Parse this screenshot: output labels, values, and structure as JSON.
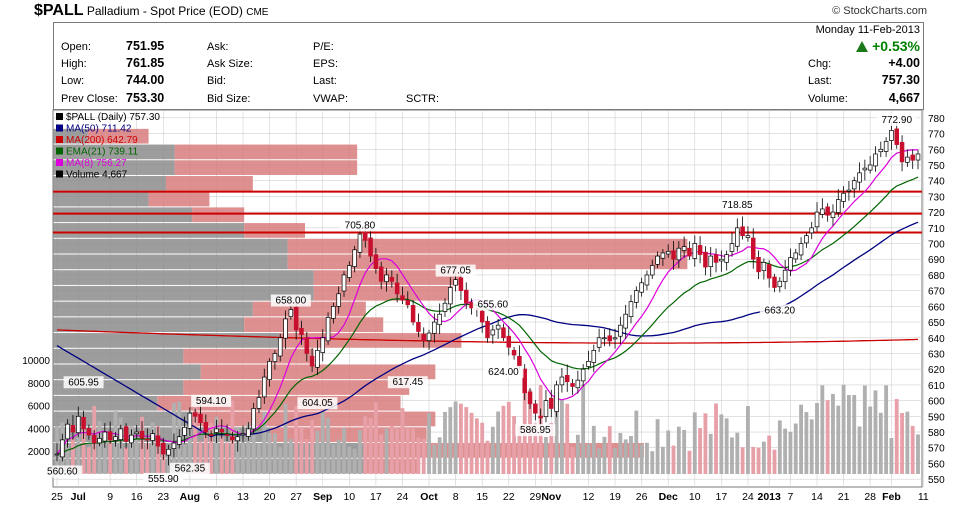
{
  "header": {
    "symbol": "$PALL",
    "name": "Palladium - Spot Price (EOD)",
    "exchange": "CME",
    "brand": "© StockCharts.com"
  },
  "quote": {
    "open_label": "Open:",
    "open": "751.95",
    "high_label": "High:",
    "high": "761.85",
    "low_label": "Low:",
    "low": "744.00",
    "prev_label": "Prev Close:",
    "prev": "753.30",
    "ask_label": "Ask:",
    "asksize_label": "Ask Size:",
    "bid_label": "Bid:",
    "bidsize_label": "Bid Size:",
    "pe_label": "P/E:",
    "eps_label": "EPS:",
    "last_label2": "Last:",
    "vwap_label": "VWAP:",
    "sctr_label": "SCTR:",
    "date": "Monday  11-Feb-2013",
    "pct": "+0.53%",
    "chg_label": "Chg:",
    "chg": "+4.00",
    "last_label": "Last:",
    "last": "757.30",
    "volume_label": "Volume:",
    "volume": "4,667"
  },
  "legend": [
    {
      "text": "$PALL (Daily) 757.30",
      "color": "#000000"
    },
    {
      "text": "MA(50) 711.42",
      "color": "#000080"
    },
    {
      "text": "MA(200) 642.79",
      "color": "#cc0000"
    },
    {
      "text": "EMA(21) 739.11",
      "color": "#006400"
    },
    {
      "text": "MA(8) 756.27",
      "color": "#dd00dd"
    },
    {
      "text": "Volume 4,667",
      "color": "#000000"
    }
  ],
  "chart_data": {
    "type": "candlestick",
    "title": "$PALL (Daily) 757.30",
    "ylim": [
      545,
      785
    ],
    "y_ticks": [
      550,
      560,
      570,
      580,
      590,
      600,
      610,
      620,
      630,
      640,
      650,
      660,
      670,
      680,
      690,
      700,
      710,
      720,
      730,
      740,
      750,
      760,
      770,
      780
    ],
    "vol_ticks": [
      2000,
      4000,
      6000,
      8000,
      10000
    ],
    "x_labels": [
      {
        "text": "25",
        "i": 0
      },
      {
        "text": "Jul",
        "i": 4
      },
      {
        "text": "9",
        "i": 10
      },
      {
        "text": "16",
        "i": 15
      },
      {
        "text": "23",
        "i": 20
      },
      {
        "text": "Aug",
        "i": 25
      },
      {
        "text": "6",
        "i": 30
      },
      {
        "text": "13",
        "i": 35
      },
      {
        "text": "20",
        "i": 40
      },
      {
        "text": "27",
        "i": 45
      },
      {
        "text": "Sep",
        "i": 50
      },
      {
        "text": "10",
        "i": 55
      },
      {
        "text": "17",
        "i": 60
      },
      {
        "text": "24",
        "i": 65
      },
      {
        "text": "Oct",
        "i": 70
      },
      {
        "text": "8",
        "i": 75
      },
      {
        "text": "15",
        "i": 80
      },
      {
        "text": "22",
        "i": 85
      },
      {
        "text": "29",
        "i": 90
      },
      {
        "text": "Nov",
        "i": 93
      },
      {
        "text": "12",
        "i": 100
      },
      {
        "text": "19",
        "i": 105
      },
      {
        "text": "26",
        "i": 110
      },
      {
        "text": "Dec",
        "i": 115
      },
      {
        "text": "10",
        "i": 120
      },
      {
        "text": "17",
        "i": 125
      },
      {
        "text": "24",
        "i": 130
      },
      {
        "text": "2013",
        "i": 134
      },
      {
        "text": "7",
        "i": 138
      },
      {
        "text": "14",
        "i": 143
      },
      {
        "text": "21",
        "i": 148
      },
      {
        "text": "28",
        "i": 153
      },
      {
        "text": "Feb",
        "i": 157
      },
      {
        "text": "11",
        "i": 163
      }
    ],
    "closes": [
      566,
      575,
      585,
      580,
      590,
      582,
      578,
      573,
      576,
      580,
      575,
      577,
      582,
      574,
      578,
      580,
      576,
      575,
      579,
      571,
      566,
      569,
      573,
      577,
      583,
      592,
      590,
      586,
      580,
      578,
      582,
      580,
      578,
      575,
      577,
      579,
      582,
      595,
      602,
      615,
      625,
      630,
      640,
      652,
      658,
      645,
      642,
      630,
      622,
      632,
      640,
      653,
      660,
      668,
      680,
      686,
      696,
      706,
      702,
      692,
      684,
      676,
      680,
      676,
      668,
      664,
      661,
      650,
      644,
      638,
      643,
      650,
      655,
      662,
      672,
      677,
      670,
      662,
      659,
      658,
      650,
      640,
      645,
      648,
      640,
      634,
      629,
      622,
      605,
      598,
      592,
      589,
      600,
      595,
      610,
      615,
      612,
      609,
      613,
      620,
      625,
      632,
      640,
      640,
      638,
      640,
      648,
      655,
      663,
      670,
      675,
      680,
      686,
      692,
      694,
      695,
      690,
      697,
      698,
      692,
      700,
      693,
      685,
      692,
      688,
      690,
      693,
      700,
      710,
      705,
      705,
      690,
      682,
      688,
      678,
      672,
      676,
      683,
      691,
      694,
      700,
      705,
      710,
      720,
      722,
      718,
      720,
      728,
      732,
      734,
      740,
      745,
      748,
      750,
      757,
      760,
      765,
      772,
      763,
      752,
      755,
      753,
      757
    ],
    "highs_annot": [
      {
        "text": "605.95",
        "i": 5,
        "v": 605.95,
        "pos": "above"
      },
      {
        "text": "560.60",
        "i": 1,
        "v": 560.6,
        "pos": "below"
      },
      {
        "text": "555.90",
        "i": 20,
        "v": 555.9,
        "pos": "below"
      },
      {
        "text": "562.35",
        "i": 25,
        "v": 562.35,
        "pos": "below"
      },
      {
        "text": "594.10",
        "i": 29,
        "v": 594.1,
        "pos": "above"
      },
      {
        "text": "658.00",
        "i": 44,
        "v": 658.0,
        "pos": "above"
      },
      {
        "text": "604.05",
        "i": 49,
        "v": 604.05,
        "pos": "below"
      },
      {
        "text": "705.80",
        "i": 57,
        "v": 705.8,
        "pos": "above"
      },
      {
        "text": "617.45",
        "i": 66,
        "v": 617.45,
        "pos": "below"
      },
      {
        "text": "677.05",
        "i": 75,
        "v": 677.05,
        "pos": "above"
      },
      {
        "text": "655.60",
        "i": 82,
        "v": 655.6,
        "pos": "above"
      },
      {
        "text": "624.00",
        "i": 84,
        "v": 624.0,
        "pos": "below"
      },
      {
        "text": "586.95",
        "i": 90,
        "v": 586.95,
        "pos": "below"
      },
      {
        "text": "718.85",
        "i": 128,
        "v": 718.85,
        "pos": "above"
      },
      {
        "text": "663.20",
        "i": 136,
        "v": 663.2,
        "pos": "below"
      },
      {
        "text": "772.90",
        "i": 158,
        "v": 772.9,
        "pos": "above"
      }
    ],
    "hlines": [
      733,
      719,
      707
    ],
    "vbp": [
      {
        "lo": 553,
        "hi": 563,
        "dn": 0.36,
        "up": 0.06
      },
      {
        "lo": 563,
        "hi": 573,
        "dn": 0.36,
        "up": 0.32
      },
      {
        "lo": 573,
        "hi": 583,
        "dn": 0.25,
        "up": 0.18
      },
      {
        "lo": 583,
        "hi": 593,
        "dn": 0.16,
        "up": 0.28
      },
      {
        "lo": 593,
        "hi": 603,
        "dn": 0.12,
        "up": 0.28
      },
      {
        "lo": 603,
        "hi": 613,
        "dn": 0.15,
        "up": 0.26
      },
      {
        "lo": 613,
        "hi": 623,
        "dn": 0.17,
        "up": 0.27
      },
      {
        "lo": 623,
        "hi": 633,
        "dn": 0.15,
        "up": 0.15
      },
      {
        "lo": 633,
        "hi": 643,
        "dn": 0.26,
        "up": 0.21
      },
      {
        "lo": 643,
        "hi": 653,
        "dn": 0.22,
        "up": 0.16
      },
      {
        "lo": 653,
        "hi": 663,
        "dn": 0.23,
        "up": 0.13
      },
      {
        "lo": 663,
        "hi": 673,
        "dn": 0.3,
        "up": 0.16
      },
      {
        "lo": 673,
        "hi": 683,
        "dn": 0.3,
        "up": 0.17
      },
      {
        "lo": 683,
        "hi": 693,
        "dn": 0.27,
        "up": 0.46
      },
      {
        "lo": 693,
        "hi": 703,
        "dn": 0.27,
        "up": 0.46
      },
      {
        "lo": 703,
        "hi": 713,
        "dn": 0.22,
        "up": 0.07
      },
      {
        "lo": 713,
        "hi": 723,
        "dn": 0.16,
        "up": 0.06
      },
      {
        "lo": 723,
        "hi": 733,
        "dn": 0.11,
        "up": 0.07
      },
      {
        "lo": 733,
        "hi": 743,
        "dn": 0.13,
        "up": 0.1
      },
      {
        "lo": 743,
        "hi": 753,
        "dn": 0.14,
        "up": 0.21
      },
      {
        "lo": 753,
        "hi": 763,
        "dn": 0.14,
        "up": 0.21
      },
      {
        "lo": 763,
        "hi": 773,
        "dn": 0.04,
        "up": 0.07
      }
    ],
    "ma_series": [
      {
        "name": "MA(50)",
        "color": "#000080",
        "start": 635,
        "end": 711.42,
        "shape": "ma50"
      },
      {
        "name": "MA(200)",
        "color": "#cc0000",
        "start": 645,
        "end": 642.79,
        "shape": "ma200"
      }
    ],
    "colors": {
      "up": "#ffffff",
      "down": "#c8102e",
      "grid": "#d0d0d0",
      "volume_up": "#b0b0b0",
      "volume_down": "#e8a0a8",
      "vbp_up": "#d87c7c",
      "vbp_dn": "#8c8c8c",
      "hline": "#cc0000"
    }
  }
}
